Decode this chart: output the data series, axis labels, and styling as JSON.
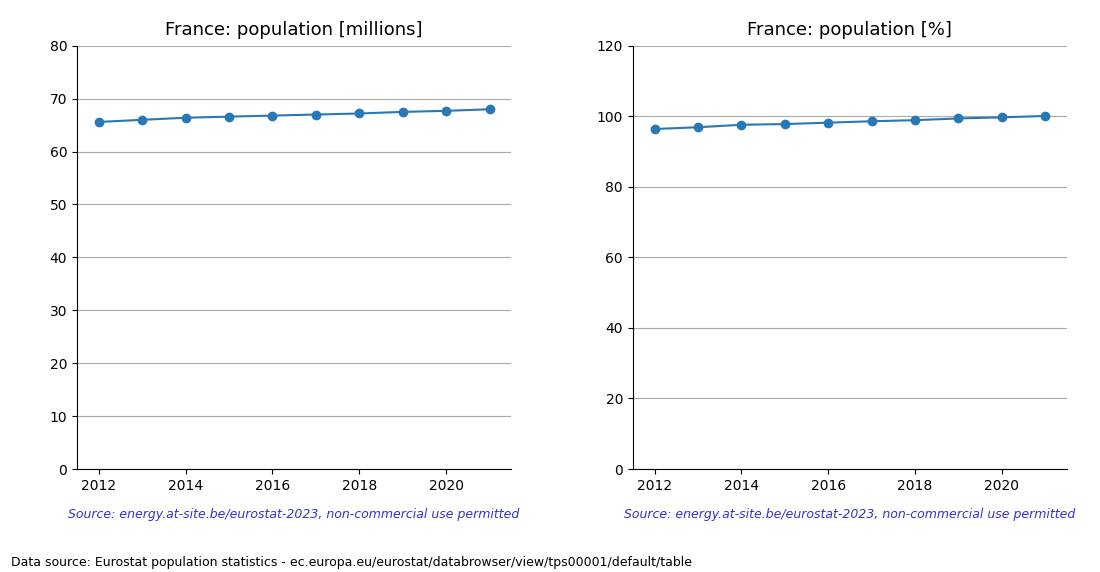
{
  "years": [
    2012,
    2013,
    2014,
    2015,
    2016,
    2017,
    2018,
    2019,
    2020,
    2021
  ],
  "millions": [
    65.6,
    66.0,
    66.4,
    66.6,
    66.8,
    67.0,
    67.2,
    67.5,
    67.7,
    68.0
  ],
  "percent": [
    96.4,
    96.9,
    97.6,
    97.8,
    98.2,
    98.6,
    98.9,
    99.4,
    99.7,
    100.1
  ],
  "title_left": "France: population [millions]",
  "title_right": "France: population [%]",
  "ylim_left": [
    0,
    80
  ],
  "ylim_right": [
    0,
    120
  ],
  "yticks_left": [
    0,
    10,
    20,
    30,
    40,
    50,
    60,
    70,
    80
  ],
  "yticks_right": [
    0,
    20,
    40,
    60,
    80,
    100,
    120
  ],
  "xlim": [
    2011.5,
    2021.5
  ],
  "xticks": [
    2012,
    2014,
    2016,
    2018,
    2020
  ],
  "line_color": "#2878b5",
  "source_text": "Source: energy.at-site.be/eurostat-2023, non-commercial use permitted",
  "source_color": "#3333cc",
  "footer_text": "Data source: Eurostat population statistics - ec.europa.eu/eurostat/databrowser/view/tps00001/default/table",
  "footer_color": "#000000",
  "grid_color": "#aaaaaa",
  "bg_color": "#ffffff"
}
